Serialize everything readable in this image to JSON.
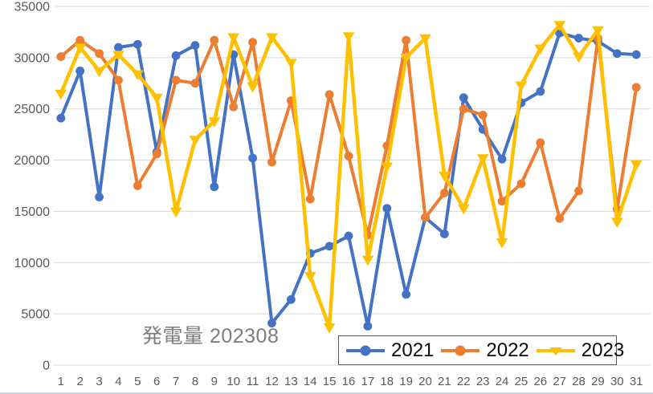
{
  "window": {
    "background": "#ffffff"
  },
  "chart_data": {
    "type": "line",
    "title": "発電量 202308",
    "xlabel": "",
    "ylabel": "",
    "x": [
      1,
      2,
      3,
      4,
      5,
      6,
      7,
      8,
      9,
      10,
      11,
      12,
      13,
      14,
      15,
      16,
      17,
      18,
      19,
      20,
      21,
      22,
      23,
      24,
      25,
      26,
      27,
      28,
      29,
      30,
      31
    ],
    "ylim": [
      0,
      35000
    ],
    "ytick_step": 5000,
    "yticks": [
      0,
      5000,
      10000,
      15000,
      20000,
      25000,
      30000,
      35000
    ],
    "grid": "horizontal",
    "legend_position": "bottom-right-inside",
    "series": [
      {
        "name": "2021",
        "color": "#4472C4",
        "marker": "circle",
        "values": [
          24100,
          28700,
          16400,
          31000,
          31300,
          20800,
          30200,
          31200,
          17400,
          30300,
          20200,
          4100,
          6400,
          10900,
          11600,
          12600,
          3800,
          15300,
          6900,
          14400,
          12800,
          26100,
          23000,
          20100,
          25600,
          26700,
          32400,
          31900,
          31600,
          30400,
          30300
        ]
      },
      {
        "name": "2022",
        "color": "#ED7D31",
        "marker": "circle",
        "values": [
          30100,
          31700,
          30400,
          27800,
          17500,
          20600,
          27800,
          27500,
          31700,
          25200,
          31500,
          19800,
          25800,
          16200,
          26400,
          20400,
          12700,
          21400,
          31700,
          14400,
          16800,
          25000,
          24400,
          16000,
          17700,
          21700,
          14300,
          17000,
          31900,
          15200,
          27100
        ]
      },
      {
        "name": "2023",
        "color": "#FFC000",
        "marker": "triangle-down",
        "values": [
          26500,
          31000,
          28700,
          30300,
          28400,
          26100,
          15000,
          22000,
          23800,
          32000,
          27200,
          32000,
          29500,
          8700,
          3700,
          32100,
          10300,
          19400,
          30000,
          31900,
          18500,
          15300,
          20200,
          12000,
          27300,
          30900,
          33200,
          30100,
          32700,
          14000,
          19600
        ]
      }
    ],
    "colors": {
      "gridline": "#D9D9D9",
      "axis_text": "#595959",
      "title_text": "#7D7D7D",
      "legend_text": "#0D0D0D",
      "legend_border": "#595959"
    }
  }
}
